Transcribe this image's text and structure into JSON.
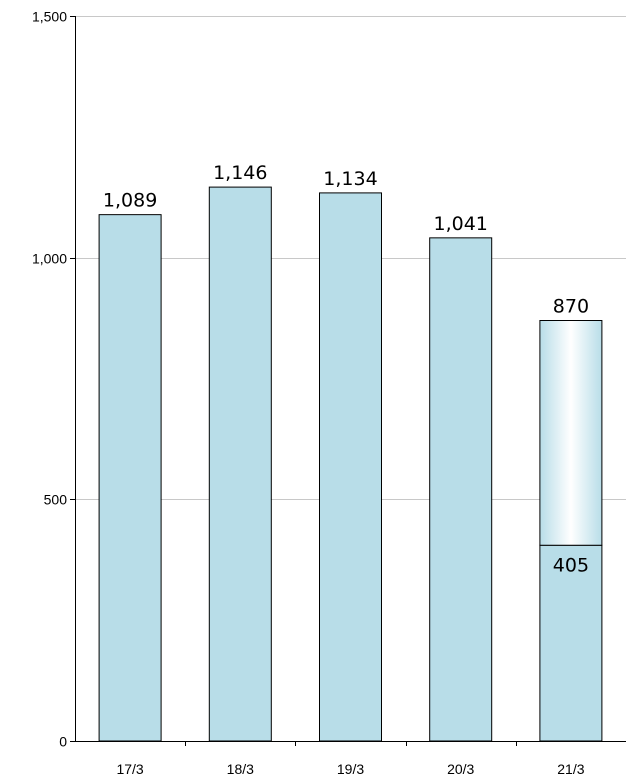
{
  "chart_data": {
    "type": "bar",
    "categories": [
      "17/3",
      "18/3",
      "19/3",
      "20/3",
      "21/3"
    ],
    "values": [
      1089,
      1146,
      1134,
      1041,
      870
    ],
    "value_labels": [
      "1,089",
      "1,146",
      "1,134",
      "1,041",
      "870"
    ],
    "partial": {
      "category": "21/3",
      "solid_value": 405,
      "solid_label": "405"
    },
    "title": "",
    "xlabel": "",
    "ylabel": "",
    "ylim": [
      0,
      1500
    ],
    "yticks": [
      0,
      500,
      1000,
      1500
    ],
    "ytick_labels": [
      "0",
      "500",
      "1,000",
      "1,500"
    ],
    "grid": true,
    "colors": {
      "bar_fill": "#b8dde8",
      "bar_stroke": "#000000",
      "gradient_light": "#ffffff",
      "gridline": "#c8c8c8",
      "axis": "#000000"
    }
  }
}
